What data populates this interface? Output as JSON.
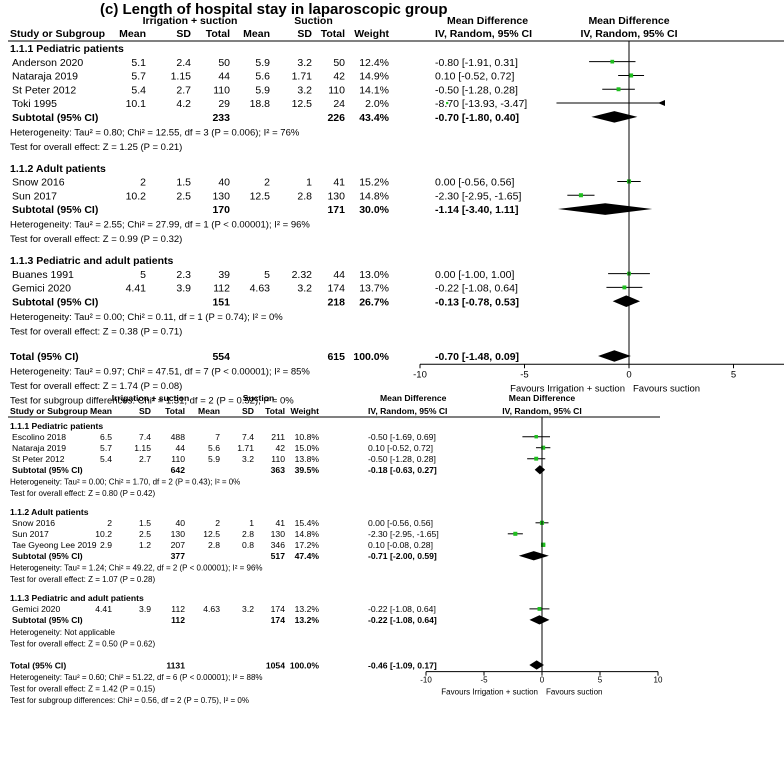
{
  "chart_data": [
    {
      "type": "forest",
      "title": "(c) Length of hospital stay in laparoscopic group",
      "header": {
        "group1": "Irrigation + suction",
        "group2": "Suction",
        "md": "Mean Difference",
        "study": "Study or Subgroup",
        "mean": "Mean",
        "sd": "SD",
        "total": "Total",
        "weight": "Weight",
        "method": "IV, Random, 95% CI"
      },
      "subgroups": [
        {
          "name": "1.1.1 Pediatric patients",
          "studies": [
            {
              "name": "Anderson 2020",
              "m1": "5.1",
              "sd1": "2.4",
              "n1": "50",
              "m2": "5.9",
              "sd2": "3.2",
              "n2": "50",
              "weight": "12.4%",
              "ci_text": "-0.80 [-1.91, 0.31]",
              "md": -0.8,
              "lo": -1.91,
              "hi": 0.31,
              "w": 12.4
            },
            {
              "name": "Nataraja 2019",
              "m1": "5.7",
              "sd1": "1.15",
              "n1": "44",
              "m2": "5.6",
              "sd2": "1.71",
              "n2": "42",
              "weight": "14.9%",
              "ci_text": "0.10 [-0.52, 0.72]",
              "md": 0.1,
              "lo": -0.52,
              "hi": 0.72,
              "w": 14.9
            },
            {
              "name": "St Peter 2012",
              "m1": "5.4",
              "sd1": "2.7",
              "n1": "110",
              "m2": "5.9",
              "sd2": "3.2",
              "n2": "110",
              "weight": "14.1%",
              "ci_text": "-0.50 [-1.28, 0.28]",
              "md": -0.5,
              "lo": -1.28,
              "hi": 0.28,
              "w": 14.1
            },
            {
              "name": "Toki 1995",
              "m1": "10.1",
              "sd1": "4.2",
              "n1": "29",
              "m2": "18.8",
              "sd2": "12.5",
              "n2": "24",
              "weight": "2.0%",
              "ci_text": "-8.70 [-13.93, -3.47]",
              "md": -8.7,
              "lo": -13.93,
              "hi": -3.47,
              "w": 2.0
            }
          ],
          "subtotal": {
            "label": "Subtotal (95% CI)",
            "n1": "233",
            "n2": "226",
            "weight": "43.4%",
            "ci_text": "-0.70 [-1.80, 0.40]",
            "md": -0.7,
            "lo": -1.8,
            "hi": 0.4
          },
          "heterogeneity": "Heterogeneity: Tau² = 0.80; Chi² = 12.55, df = 3 (P = 0.006); I² = 76%",
          "overall": "Test for overall effect: Z = 1.25 (P = 0.21)"
        },
        {
          "name": "1.1.2 Adult patients",
          "studies": [
            {
              "name": "Snow 2016",
              "m1": "2",
              "sd1": "1.5",
              "n1": "40",
              "m2": "2",
              "sd2": "1",
              "n2": "41",
              "weight": "15.2%",
              "ci_text": "0.00 [-0.56, 0.56]",
              "md": 0.0,
              "lo": -0.56,
              "hi": 0.56,
              "w": 15.2
            },
            {
              "name": "Sun 2017",
              "m1": "10.2",
              "sd1": "2.5",
              "n1": "130",
              "m2": "12.5",
              "sd2": "2.8",
              "n2": "130",
              "weight": "14.8%",
              "ci_text": "-2.30 [-2.95, -1.65]",
              "md": -2.3,
              "lo": -2.95,
              "hi": -1.65,
              "w": 14.8
            }
          ],
          "subtotal": {
            "label": "Subtotal (95% CI)",
            "n1": "170",
            "n2": "171",
            "weight": "30.0%",
            "ci_text": "-1.14 [-3.40, 1.11]",
            "md": -1.14,
            "lo": -3.4,
            "hi": 1.11
          },
          "heterogeneity": "Heterogeneity: Tau² = 2.55; Chi² = 27.99, df = 1 (P < 0.00001); I² = 96%",
          "overall": "Test for overall effect: Z = 0.99 (P = 0.32)"
        },
        {
          "name": "1.1.3 Pediatric and adult patients",
          "studies": [
            {
              "name": "Buanes 1991",
              "m1": "5",
              "sd1": "2.3",
              "n1": "39",
              "m2": "5",
              "sd2": "2.32",
              "n2": "44",
              "weight": "13.0%",
              "ci_text": "0.00 [-1.00, 1.00]",
              "md": 0.0,
              "lo": -1.0,
              "hi": 1.0,
              "w": 13.0
            },
            {
              "name": "Gemici 2020",
              "m1": "4.41",
              "sd1": "3.9",
              "n1": "112",
              "m2": "4.63",
              "sd2": "3.2",
              "n2": "174",
              "weight": "13.7%",
              "ci_text": "-0.22 [-1.08, 0.64]",
              "md": -0.22,
              "lo": -1.08,
              "hi": 0.64,
              "w": 13.7
            }
          ],
          "subtotal": {
            "label": "Subtotal (95% CI)",
            "n1": "151",
            "n2": "218",
            "weight": "26.7%",
            "ci_text": "-0.13 [-0.78, 0.53]",
            "md": -0.13,
            "lo": -0.78,
            "hi": 0.53
          },
          "heterogeneity": "Heterogeneity: Tau² = 0.00; Chi² = 0.11, df = 1 (P = 0.74); I² = 0%",
          "overall": "Test for overall effect: Z = 0.38 (P = 0.71)"
        }
      ],
      "total": {
        "label": "Total (95% CI)",
        "n1": "554",
        "n2": "615",
        "weight": "100.0%",
        "ci_text": "-0.70 [-1.48, 0.09]",
        "md": -0.7,
        "lo": -1.48,
        "hi": 0.09
      },
      "total_heterogeneity": "Heterogeneity: Tau² = 0.97; Chi² = 47.51, df = 7 (P < 0.00001); I² = 85%",
      "total_overall": "Test for overall effect: Z = 1.74 (P = 0.08)",
      "subgroup_diff": "Test for subgroup differences: Chi² = 1.31, df = 2 (P = 0.52), I² = 0%",
      "xlim": [
        -10,
        10
      ],
      "ticks": [
        -10,
        -5,
        0,
        5,
        10
      ],
      "favours_left": "Favours Irrigation + suction",
      "favours_right": "Favours suction"
    },
    {
      "type": "forest",
      "title": "",
      "header": {
        "group1": "Irrigation + suction",
        "group2": "Suction",
        "md": "Mean Difference",
        "study": "Study or Subgroup",
        "mean": "Mean",
        "sd": "SD",
        "total": "Total",
        "weight": "Weight",
        "method": "IV, Random, 95% CI"
      },
      "subgroups": [
        {
          "name": "1.1.1 Pediatric patients",
          "studies": [
            {
              "name": "Escolino 2018",
              "m1": "6.5",
              "sd1": "7.4",
              "n1": "488",
              "m2": "7",
              "sd2": "7.4",
              "n2": "211",
              "weight": "10.8%",
              "ci_text": "-0.50 [-1.69, 0.69]",
              "md": -0.5,
              "lo": -1.69,
              "hi": 0.69,
              "w": 10.8
            },
            {
              "name": "Nataraja 2019",
              "m1": "5.7",
              "sd1": "1.15",
              "n1": "44",
              "m2": "5.6",
              "sd2": "1.71",
              "n2": "42",
              "weight": "15.0%",
              "ci_text": "0.10 [-0.52, 0.72]",
              "md": 0.1,
              "lo": -0.52,
              "hi": 0.72,
              "w": 15.0
            },
            {
              "name": "St Peter 2012",
              "m1": "5.4",
              "sd1": "2.7",
              "n1": "110",
              "m2": "5.9",
              "sd2": "3.2",
              "n2": "110",
              "weight": "13.8%",
              "ci_text": "-0.50 [-1.28, 0.28]",
              "md": -0.5,
              "lo": -1.28,
              "hi": 0.28,
              "w": 13.8
            }
          ],
          "subtotal": {
            "label": "Subtotal (95% CI)",
            "n1": "642",
            "n2": "363",
            "weight": "39.5%",
            "ci_text": "-0.18 [-0.63, 0.27]",
            "md": -0.18,
            "lo": -0.63,
            "hi": 0.27
          },
          "heterogeneity": "Heterogeneity: Tau² = 0.00; Chi² = 1.70, df = 2 (P = 0.43); I² = 0%",
          "overall": "Test for overall effect: Z = 0.80 (P = 0.42)"
        },
        {
          "name": "1.1.2 Adult patients",
          "studies": [
            {
              "name": "Snow 2016",
              "m1": "2",
              "sd1": "1.5",
              "n1": "40",
              "m2": "2",
              "sd2": "1",
              "n2": "41",
              "weight": "15.4%",
              "ci_text": "0.00 [-0.56, 0.56]",
              "md": 0.0,
              "lo": -0.56,
              "hi": 0.56,
              "w": 15.4
            },
            {
              "name": "Sun 2017",
              "m1": "10.2",
              "sd1": "2.5",
              "n1": "130",
              "m2": "12.5",
              "sd2": "2.8",
              "n2": "130",
              "weight": "14.8%",
              "ci_text": "-2.30 [-2.95, -1.65]",
              "md": -2.3,
              "lo": -2.95,
              "hi": -1.65,
              "w": 14.8
            },
            {
              "name": "Tae Gyeong Lee 2019",
              "m1": "2.9",
              "sd1": "1.2",
              "n1": "207",
              "m2": "2.8",
              "sd2": "0.8",
              "n2": "346",
              "weight": "17.2%",
              "ci_text": "0.10 [-0.08, 0.28]",
              "md": 0.1,
              "lo": -0.08,
              "hi": 0.28,
              "w": 17.2
            }
          ],
          "subtotal": {
            "label": "Subtotal (95% CI)",
            "n1": "377",
            "n2": "517",
            "weight": "47.4%",
            "ci_text": "-0.71 [-2.00, 0.59]",
            "md": -0.71,
            "lo": -2.0,
            "hi": 0.59
          },
          "heterogeneity": "Heterogeneity: Tau² = 1.24; Chi² = 49.22, df = 2 (P < 0.00001); I² = 96%",
          "overall": "Test for overall effect: Z = 1.07 (P = 0.28)"
        },
        {
          "name": "1.1.3 Pediatric and adult patients",
          "studies": [
            {
              "name": "Gemici 2020",
              "m1": "4.41",
              "sd1": "3.9",
              "n1": "112",
              "m2": "4.63",
              "sd2": "3.2",
              "n2": "174",
              "weight": "13.2%",
              "ci_text": "-0.22 [-1.08, 0.64]",
              "md": -0.22,
              "lo": -1.08,
              "hi": 0.64,
              "w": 13.2
            }
          ],
          "subtotal": {
            "label": "Subtotal (95% CI)",
            "n1": "112",
            "n2": "174",
            "weight": "13.2%",
            "ci_text": "-0.22 [-1.08, 0.64]",
            "md": -0.22,
            "lo": -1.08,
            "hi": 0.64
          },
          "heterogeneity": "Heterogeneity: Not applicable",
          "overall": "Test for overall effect: Z = 0.50 (P = 0.62)"
        }
      ],
      "total": {
        "label": "Total (95% CI)",
        "n1": "1131",
        "n2": "1054",
        "weight": "100.0%",
        "ci_text": "-0.46 [-1.09, 0.17]",
        "md": -0.46,
        "lo": -1.09,
        "hi": 0.17
      },
      "total_heterogeneity": "Heterogeneity: Tau² = 0.60; Chi² = 51.22, df = 6 (P < 0.00001); I² = 88%",
      "total_overall": "Test for overall effect: Z = 1.42 (P = 0.15)",
      "subgroup_diff": "Test for subgroup differences: Chi² = 0.56, df = 2 (P = 0.75), I² = 0%",
      "xlim": [
        -10,
        10
      ],
      "ticks": [
        -10,
        -5,
        0,
        5,
        10
      ],
      "favours_left": "Favours Irrigation + suction",
      "favours_right": "Favours suction"
    }
  ],
  "colors": {
    "study_marker": "#1fbf1f",
    "diamond": "#000000",
    "text": "#000000"
  }
}
